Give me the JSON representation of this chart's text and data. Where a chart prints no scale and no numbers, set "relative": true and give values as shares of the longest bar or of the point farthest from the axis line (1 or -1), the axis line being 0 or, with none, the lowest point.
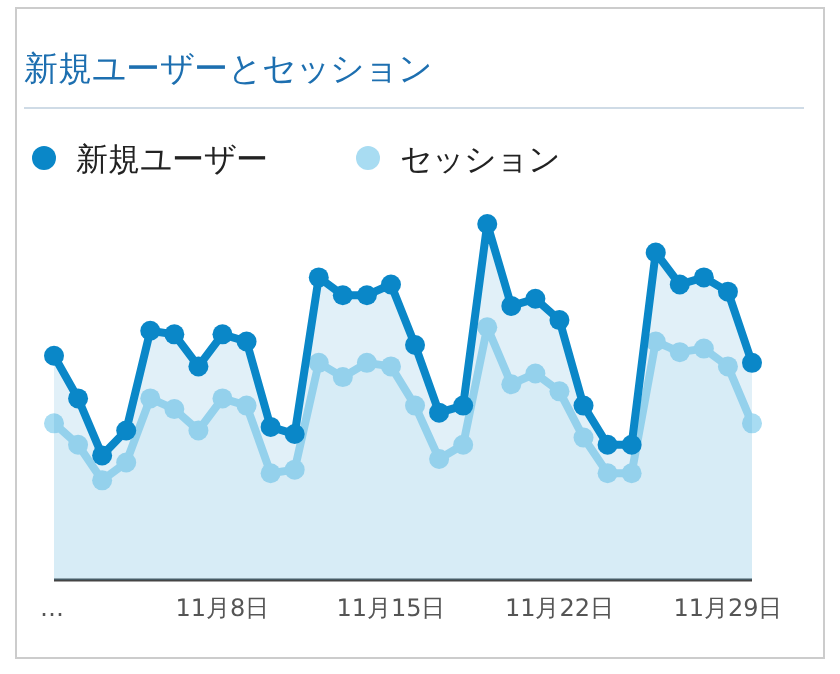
{
  "chart_data": {
    "type": "area",
    "title": "新規ユーザーとセッション",
    "relative": true,
    "legend": "top left",
    "marker": "circle",
    "categories": [
      "…",
      null,
      null,
      null,
      null,
      null,
      null,
      "11月8日",
      null,
      null,
      null,
      null,
      null,
      null,
      "11月15日",
      null,
      null,
      null,
      null,
      null,
      null,
      "11月22日",
      null,
      null,
      null,
      null,
      null,
      null,
      "11月29日",
      null
    ],
    "series": [
      {
        "name": "セッション",
        "type": "area",
        "color": "#a8dcf2",
        "values": [
          0.44,
          0.38,
          0.28,
          0.33,
          0.51,
          0.48,
          0.42,
          0.51,
          0.49,
          0.3,
          0.31,
          0.61,
          0.57,
          0.61,
          0.6,
          0.49,
          0.34,
          0.38,
          0.71,
          0.55,
          0.58,
          0.53,
          0.4,
          0.3,
          0.3,
          0.67,
          0.64,
          0.65,
          0.6,
          0.44
        ]
      },
      {
        "name": "新規ユーザー",
        "type": "area",
        "color": "#0a87c8",
        "values": [
          0.63,
          0.51,
          0.35,
          0.42,
          0.7,
          0.69,
          0.6,
          0.69,
          0.67,
          0.43,
          0.41,
          0.85,
          0.8,
          0.8,
          0.83,
          0.66,
          0.47,
          0.49,
          1,
          0.77,
          0.79,
          0.73,
          0.49,
          0.38,
          0.38,
          0.92,
          0.83,
          0.85,
          0.81,
          0.61
        ]
      }
    ]
  }
}
